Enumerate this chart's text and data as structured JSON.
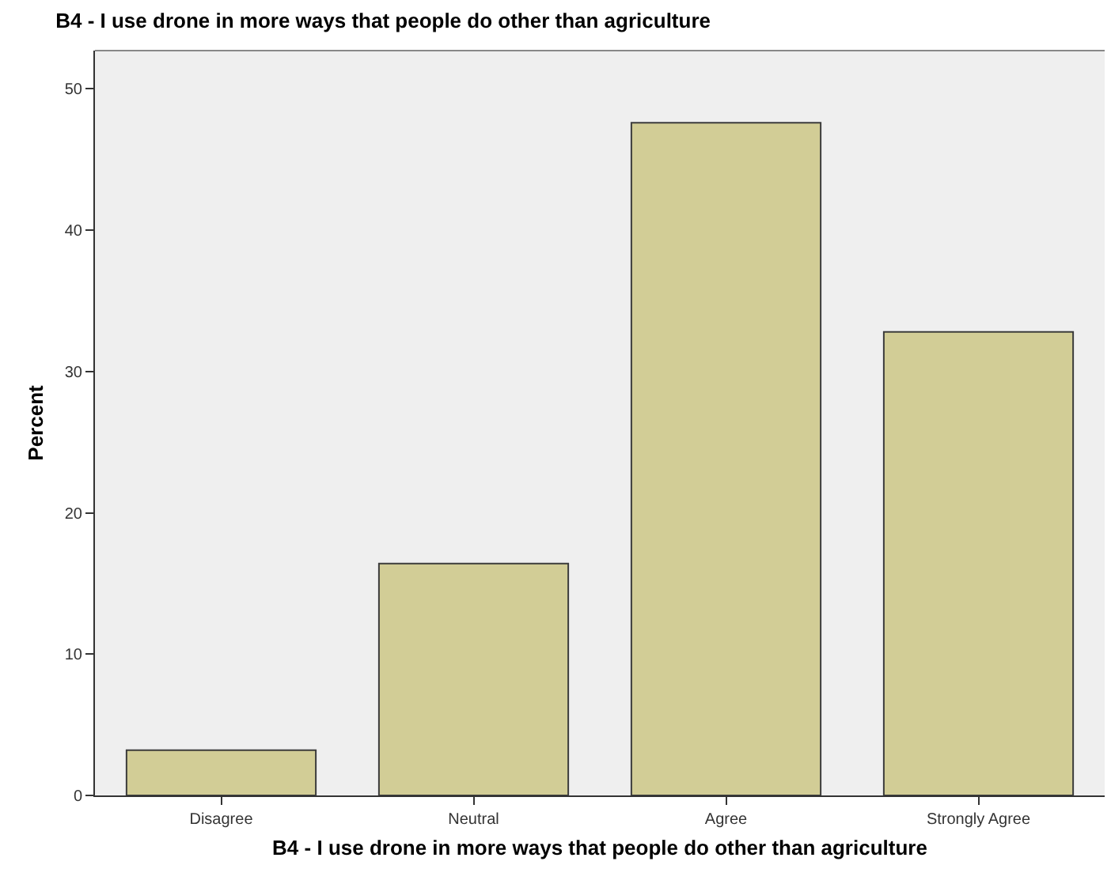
{
  "chart_data": {
    "type": "bar",
    "title": "B4 - I use drone in more ways that people do other than agriculture",
    "xlabel": "B4 - I use drone in more ways that people do other than agriculture",
    "ylabel": "Percent",
    "categories": [
      "Disagree",
      "Neutral",
      "Agree",
      "Strongly Agree"
    ],
    "values": [
      3.2,
      16.4,
      47.6,
      32.8
    ],
    "color": "#d2cd96",
    "ylim": [
      0,
      52.7
    ],
    "yticks": [
      0,
      10,
      20,
      30,
      40,
      50
    ],
    "grid": false
  }
}
